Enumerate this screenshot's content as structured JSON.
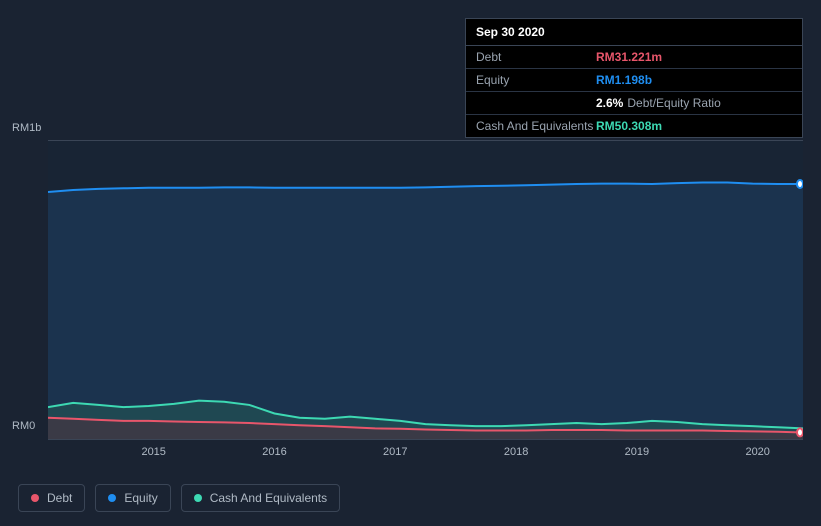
{
  "tooltip": {
    "date": "Sep 30 2020",
    "rows": [
      {
        "label": "Debt",
        "value": "RM31.221m",
        "color": "#e8566b"
      },
      {
        "label": "Equity",
        "value": "RM1.198b",
        "color": "#1f8ef1"
      },
      {
        "label": "",
        "value": "2.6%",
        "suffix": "Debt/Equity Ratio",
        "color": "#ffffff"
      },
      {
        "label": "Cash And Equivalents",
        "value": "RM50.308m",
        "color": "#3dd9b3"
      }
    ]
  },
  "chart": {
    "type": "area",
    "background_color": "#182434",
    "page_background": "#1a2332",
    "grid_border_color": "#3a4556",
    "y_top_label": "RM1b",
    "y_bottom_label": "RM0",
    "ylim": [
      0,
      1400
    ],
    "x_years": [
      "2015",
      "2016",
      "2017",
      "2018",
      "2019",
      "2020"
    ],
    "x_positions_pct": [
      14,
      30,
      46,
      62,
      78,
      94
    ],
    "series": [
      {
        "name": "Equity",
        "color": "#1f8ef1",
        "fill": "#1d3a5a",
        "fill_opacity": 0.7,
        "line_width": 2,
        "values": [
          1160,
          1170,
          1175,
          1178,
          1180,
          1180,
          1180,
          1182,
          1182,
          1180,
          1180,
          1180,
          1180,
          1180,
          1180,
          1182,
          1185,
          1188,
          1190,
          1192,
          1195,
          1198,
          1200,
          1200,
          1198,
          1202,
          1205,
          1205,
          1200,
          1198,
          1198
        ]
      },
      {
        "name": "Cash And Equivalents",
        "color": "#3dd9b3",
        "fill": "#235a55",
        "fill_opacity": 0.55,
        "line_width": 2,
        "values": [
          150,
          170,
          160,
          150,
          155,
          165,
          180,
          175,
          160,
          120,
          100,
          95,
          105,
          95,
          85,
          70,
          65,
          60,
          60,
          65,
          70,
          75,
          70,
          75,
          85,
          80,
          70,
          65,
          60,
          55,
          50
        ]
      },
      {
        "name": "Debt",
        "color": "#e8566b",
        "fill": "#5a2a38",
        "fill_opacity": 0.45,
        "line_width": 2,
        "values": [
          100,
          95,
          90,
          85,
          85,
          82,
          80,
          78,
          75,
          70,
          65,
          60,
          55,
          50,
          48,
          45,
          42,
          40,
          40,
          40,
          42,
          42,
          42,
          40,
          40,
          40,
          40,
          38,
          36,
          34,
          31
        ]
      }
    ],
    "end_markers": [
      {
        "color": "#1f8ef1",
        "value": 1198
      },
      {
        "color": "#e8566b",
        "value": 31
      }
    ]
  },
  "legend": [
    {
      "label": "Debt",
      "color": "#e8566b"
    },
    {
      "label": "Equity",
      "color": "#1f8ef1"
    },
    {
      "label": "Cash And Equivalents",
      "color": "#3dd9b3"
    }
  ]
}
